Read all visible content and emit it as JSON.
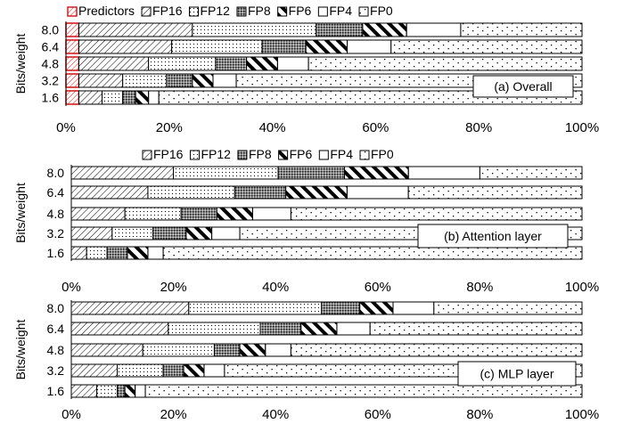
{
  "colors": {
    "predictors_border": "#d22020",
    "stroke": "#000000",
    "fill": "#ffffff"
  },
  "chart_data": [
    {
      "type": "bar",
      "orientation": "horizontal",
      "stacked": true,
      "annotation": "(a) Overall",
      "ylabel": "Bits/weight",
      "categories": [
        "8.0",
        "6.4",
        "4.8",
        "3.2",
        "1.6"
      ],
      "xlim": [
        0,
        100
      ],
      "xticks": [
        "0%",
        "20%",
        "40%",
        "60%",
        "80%",
        "100%"
      ],
      "legend": [
        "Predictors",
        "FP16",
        "FP12",
        "FP8",
        "FP6",
        "FP4",
        "FP0"
      ],
      "legend_position": "top",
      "series": [
        {
          "name": "Predictors",
          "pattern": "predictors",
          "values": [
            2.5,
            2.5,
            2.5,
            2.5,
            2.5
          ]
        },
        {
          "name": "FP16",
          "pattern": "diag",
          "values": [
            22,
            18,
            13.5,
            8.5,
            4.5
          ]
        },
        {
          "name": "FP12",
          "pattern": "dots",
          "values": [
            24,
            17.5,
            13,
            8.5,
            4
          ]
        },
        {
          "name": "FP8",
          "pattern": "dense",
          "values": [
            9,
            8.5,
            6,
            5,
            2.5
          ]
        },
        {
          "name": "FP6",
          "pattern": "stripes",
          "values": [
            8.5,
            8,
            6,
            4,
            2.5
          ]
        },
        {
          "name": "FP4",
          "pattern": "black",
          "values": [
            10.5,
            8.5,
            6,
            4.5,
            2
          ]
        },
        {
          "name": "FP0",
          "pattern": "sparse",
          "values": [
            23.5,
            37,
            53,
            67,
            82
          ]
        }
      ]
    },
    {
      "type": "bar",
      "orientation": "horizontal",
      "stacked": true,
      "annotation": "(b) Attention layer",
      "ylabel": "Bits/weight",
      "categories": [
        "8.0",
        "6.4",
        "4.8",
        "3.2",
        "1.6"
      ],
      "xlim": [
        0,
        100
      ],
      "xticks": [
        "0%",
        "20%",
        "40%",
        "60%",
        "80%",
        "100%"
      ],
      "legend": [
        "FP16",
        "FP12",
        "FP8",
        "FP6",
        "FP4",
        "FP0"
      ],
      "legend_position": "top",
      "series": [
        {
          "name": "FP16",
          "pattern": "diag",
          "values": [
            20,
            15,
            10.5,
            8,
            3
          ]
        },
        {
          "name": "FP12",
          "pattern": "dots",
          "values": [
            20.5,
            17,
            11,
            8,
            4
          ]
        },
        {
          "name": "FP8",
          "pattern": "dense",
          "values": [
            13,
            10,
            7,
            6.5,
            4
          ]
        },
        {
          "name": "FP6",
          "pattern": "stripes",
          "values": [
            12.5,
            12,
            7,
            5,
            4
          ]
        },
        {
          "name": "FP4",
          "pattern": "black",
          "values": [
            14,
            12,
            7.5,
            5.5,
            3
          ]
        },
        {
          "name": "FP0",
          "pattern": "sparse",
          "values": [
            20,
            34,
            57,
            67,
            82
          ]
        }
      ]
    },
    {
      "type": "bar",
      "orientation": "horizontal",
      "stacked": true,
      "annotation": "(c) MLP layer",
      "ylabel": "Bits/weight",
      "categories": [
        "8.0",
        "6.4",
        "4.8",
        "3.2",
        "1.6"
      ],
      "xlim": [
        0,
        100
      ],
      "xticks": [
        "0%",
        "20%",
        "40%",
        "60%",
        "80%",
        "100%"
      ],
      "legend": [],
      "series": [
        {
          "name": "FP16",
          "pattern": "diag",
          "values": [
            23,
            19,
            14,
            9,
            5
          ]
        },
        {
          "name": "FP12",
          "pattern": "dots",
          "values": [
            26,
            18,
            14,
            9,
            4
          ]
        },
        {
          "name": "FP8",
          "pattern": "dense",
          "values": [
            7.5,
            8,
            5,
            4,
            1.5
          ]
        },
        {
          "name": "FP6",
          "pattern": "stripes",
          "values": [
            6.5,
            7,
            5,
            4,
            2
          ]
        },
        {
          "name": "FP4",
          "pattern": "black",
          "values": [
            8,
            6.5,
            5,
            4,
            2
          ]
        },
        {
          "name": "FP0",
          "pattern": "sparse",
          "values": [
            29,
            41.5,
            57,
            70,
            85.5
          ]
        }
      ]
    }
  ]
}
